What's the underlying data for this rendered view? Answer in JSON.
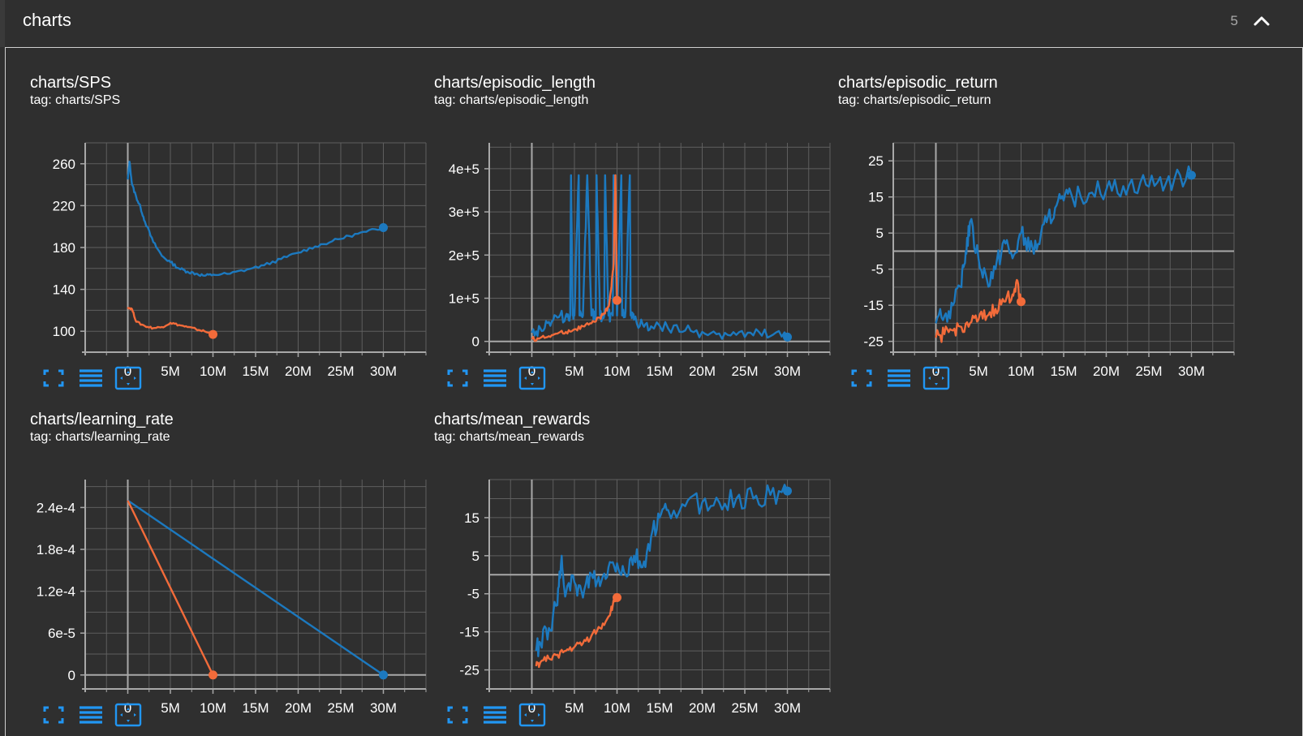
{
  "group": {
    "title": "charts",
    "count": "5"
  },
  "colors": {
    "background": "#2f2f2f",
    "grid": "#5f5f5f",
    "axis": "#a8a8a8",
    "series_blue": "#1c79bf",
    "series_orange": "#f26b3a",
    "icon": "#2196f3"
  },
  "toolbar_icons": [
    "fullscreen-icon",
    "toggle-log-scale-icon",
    "fit-domain-icon"
  ],
  "cards": [
    {
      "title": "charts/SPS",
      "tag": "tag: charts/SPS"
    },
    {
      "title": "charts/episodic_length",
      "tag": "tag: charts/episodic_length"
    },
    {
      "title": "charts/episodic_return",
      "tag": "tag: charts/episodic_return"
    },
    {
      "title": "charts/learning_rate",
      "tag": "tag: charts/learning_rate"
    },
    {
      "title": "charts/mean_rewards",
      "tag": "tag: charts/mean_rewards"
    }
  ],
  "chart_data": [
    {
      "type": "line",
      "title": "charts/SPS",
      "xlim": [
        -5,
        35
      ],
      "ylim": [
        80,
        280
      ],
      "xticks": [
        0,
        5,
        10,
        15,
        20,
        25,
        30
      ],
      "xtick_labels": [
        "0",
        "5M",
        "10M",
        "15M",
        "20M",
        "25M",
        "30M"
      ],
      "yticks": [
        100,
        140,
        180,
        220,
        260
      ],
      "ytick_labels": [
        "100",
        "140",
        "180",
        "220",
        "260"
      ],
      "series": [
        {
          "color": "#1c79bf",
          "noise": 1.5,
          "x": [
            0,
            0.2,
            0.5,
            1,
            1.5,
            2,
            3,
            4,
            5,
            6,
            7,
            8,
            9,
            10,
            12,
            14,
            16,
            18,
            20,
            22,
            24,
            26,
            28,
            30
          ],
          "y": [
            245,
            262,
            240,
            228,
            218,
            205,
            185,
            172,
            166,
            160,
            157,
            155,
            153,
            154,
            155,
            159,
            163,
            169,
            175,
            181,
            186,
            191,
            195,
            199
          ]
        },
        {
          "color": "#f26b3a",
          "noise": 1,
          "x": [
            0,
            0.5,
            1,
            2,
            3,
            4,
            5,
            6,
            7,
            8,
            9,
            10
          ],
          "y": [
            123,
            121,
            109,
            105,
            103,
            104,
            108,
            106,
            104,
            102,
            100,
            97
          ]
        }
      ]
    },
    {
      "type": "line",
      "title": "charts/episodic_length",
      "xlim": [
        -5,
        35
      ],
      "ylim": [
        -25000,
        460000
      ],
      "xticks": [
        0,
        5,
        10,
        15,
        20,
        25,
        30
      ],
      "xtick_labels": [
        "0",
        "5M",
        "10M",
        "15M",
        "20M",
        "25M",
        "30M"
      ],
      "yticks": [
        0,
        100000,
        200000,
        300000,
        400000
      ],
      "ytick_labels": [
        "0",
        "1e+5",
        "2e+5",
        "3e+5",
        "4e+5"
      ],
      "series": [
        {
          "color": "#1c79bf",
          "noise": 15000,
          "x": [
            0,
            1,
            2,
            3,
            4,
            4.5,
            4.6,
            4.8,
            5,
            5.5,
            5.6,
            6,
            6.5,
            7,
            7.5,
            7.6,
            8,
            8.5,
            8.6,
            9,
            9.5,
            9.6,
            10,
            10.5,
            10.6,
            11,
            11.5,
            11.6,
            12,
            13,
            14,
            16,
            18,
            20,
            22,
            24,
            26,
            28,
            30
          ],
          "y": [
            20000,
            30000,
            45000,
            55000,
            60000,
            60000,
            385000,
            60000,
            60000,
            385000,
            60000,
            60000,
            385000,
            60000,
            60000,
            385000,
            60000,
            60000,
            385000,
            60000,
            60000,
            385000,
            60000,
            385000,
            60000,
            70000,
            385000,
            60000,
            50000,
            40000,
            35000,
            30000,
            25000,
            22000,
            18000,
            15000,
            14000,
            12000,
            10000
          ]
        },
        {
          "color": "#f26b3a",
          "noise": 5000,
          "x": [
            0,
            1,
            2,
            3,
            4,
            5,
            6,
            7,
            8,
            8.5,
            9,
            9.3,
            9.6,
            9.8,
            10
          ],
          "y": [
            5000,
            8000,
            12000,
            18000,
            22000,
            28000,
            35000,
            42000,
            55000,
            65000,
            80000,
            120000,
            180000,
            385000,
            95000
          ]
        }
      ]
    },
    {
      "type": "line",
      "title": "charts/episodic_return",
      "xlim": [
        -5,
        35
      ],
      "ylim": [
        -28,
        30
      ],
      "xticks": [
        0,
        5,
        10,
        15,
        20,
        25,
        30
      ],
      "xtick_labels": [
        "0",
        "5M",
        "10M",
        "15M",
        "20M",
        "25M",
        "30M"
      ],
      "yticks": [
        -25,
        -15,
        -5,
        5,
        15,
        25
      ],
      "ytick_labels": [
        "-25",
        "-15",
        "-5",
        "5",
        "15",
        "25"
      ],
      "series": [
        {
          "color": "#1c79bf",
          "noise": 3,
          "x": [
            0,
            1,
            2,
            3,
            3.5,
            4,
            5,
            6,
            7,
            8,
            9,
            10,
            11,
            12,
            13,
            14,
            15,
            16,
            18,
            20,
            22,
            24,
            26,
            28,
            30
          ],
          "y": [
            -20,
            -18,
            -15,
            -10,
            0,
            8,
            -2,
            -8,
            -5,
            3,
            -2,
            5,
            0,
            2,
            8,
            12,
            14,
            15,
            16,
            17,
            18,
            19,
            19,
            20,
            21
          ]
        },
        {
          "color": "#f26b3a",
          "noise": 2,
          "x": [
            0,
            1,
            2,
            3,
            4,
            5,
            6,
            7,
            8,
            9,
            9.5,
            10
          ],
          "y": [
            -24,
            -23,
            -22,
            -21,
            -20,
            -19,
            -18,
            -16,
            -14,
            -12,
            -8,
            -14
          ]
        }
      ]
    },
    {
      "type": "line",
      "title": "charts/learning_rate",
      "xlim": [
        -5,
        35
      ],
      "ylim": [
        -2e-05,
        0.00028
      ],
      "xticks": [
        0,
        5,
        10,
        15,
        20,
        25,
        30
      ],
      "xtick_labels": [
        "0",
        "5M",
        "10M",
        "15M",
        "20M",
        "25M",
        "30M"
      ],
      "yticks": [
        0,
        6e-05,
        0.00012,
        0.00018,
        0.00024
      ],
      "ytick_labels": [
        "0",
        "6e-5",
        "1.2e-4",
        "1.8e-4",
        "2.4e-4"
      ],
      "series": [
        {
          "color": "#1c79bf",
          "noise": 0,
          "x": [
            0,
            30
          ],
          "y": [
            0.00025,
            0
          ]
        },
        {
          "color": "#f26b3a",
          "noise": 0,
          "x": [
            0,
            10
          ],
          "y": [
            0.00025,
            0
          ]
        }
      ]
    },
    {
      "type": "line",
      "title": "charts/mean_rewards",
      "xlim": [
        -5,
        35
      ],
      "ylim": [
        -30,
        25
      ],
      "xticks": [
        0,
        5,
        10,
        15,
        20,
        25,
        30
      ],
      "xtick_labels": [
        "0",
        "5M",
        "10M",
        "15M",
        "20M",
        "25M",
        "30M"
      ],
      "yticks": [
        -25,
        -15,
        -5,
        5,
        15
      ],
      "ytick_labels": [
        "-25",
        "-15",
        "-5",
        "5",
        "15"
      ],
      "series": [
        {
          "color": "#1c79bf",
          "noise": 3,
          "x": [
            0.5,
            1,
            2,
            3,
            3.5,
            4,
            5,
            6,
            7,
            8,
            9,
            10,
            11,
            12,
            13,
            14,
            15,
            16,
            18,
            20,
            22,
            24,
            26,
            28,
            30
          ],
          "y": [
            -20,
            -18,
            -14,
            -8,
            5,
            -5,
            -2,
            -6,
            0,
            -3,
            2,
            3,
            0,
            5,
            2,
            10,
            15,
            17,
            18,
            19,
            19,
            20,
            20,
            21,
            22
          ]
        },
        {
          "color": "#f26b3a",
          "noise": 1,
          "x": [
            0.5,
            1,
            2,
            3,
            4,
            5,
            6,
            7,
            8,
            9,
            9.5,
            10
          ],
          "y": [
            -24,
            -23,
            -22,
            -21,
            -20,
            -19,
            -18,
            -16,
            -14,
            -11,
            -8,
            -6
          ]
        }
      ]
    }
  ]
}
